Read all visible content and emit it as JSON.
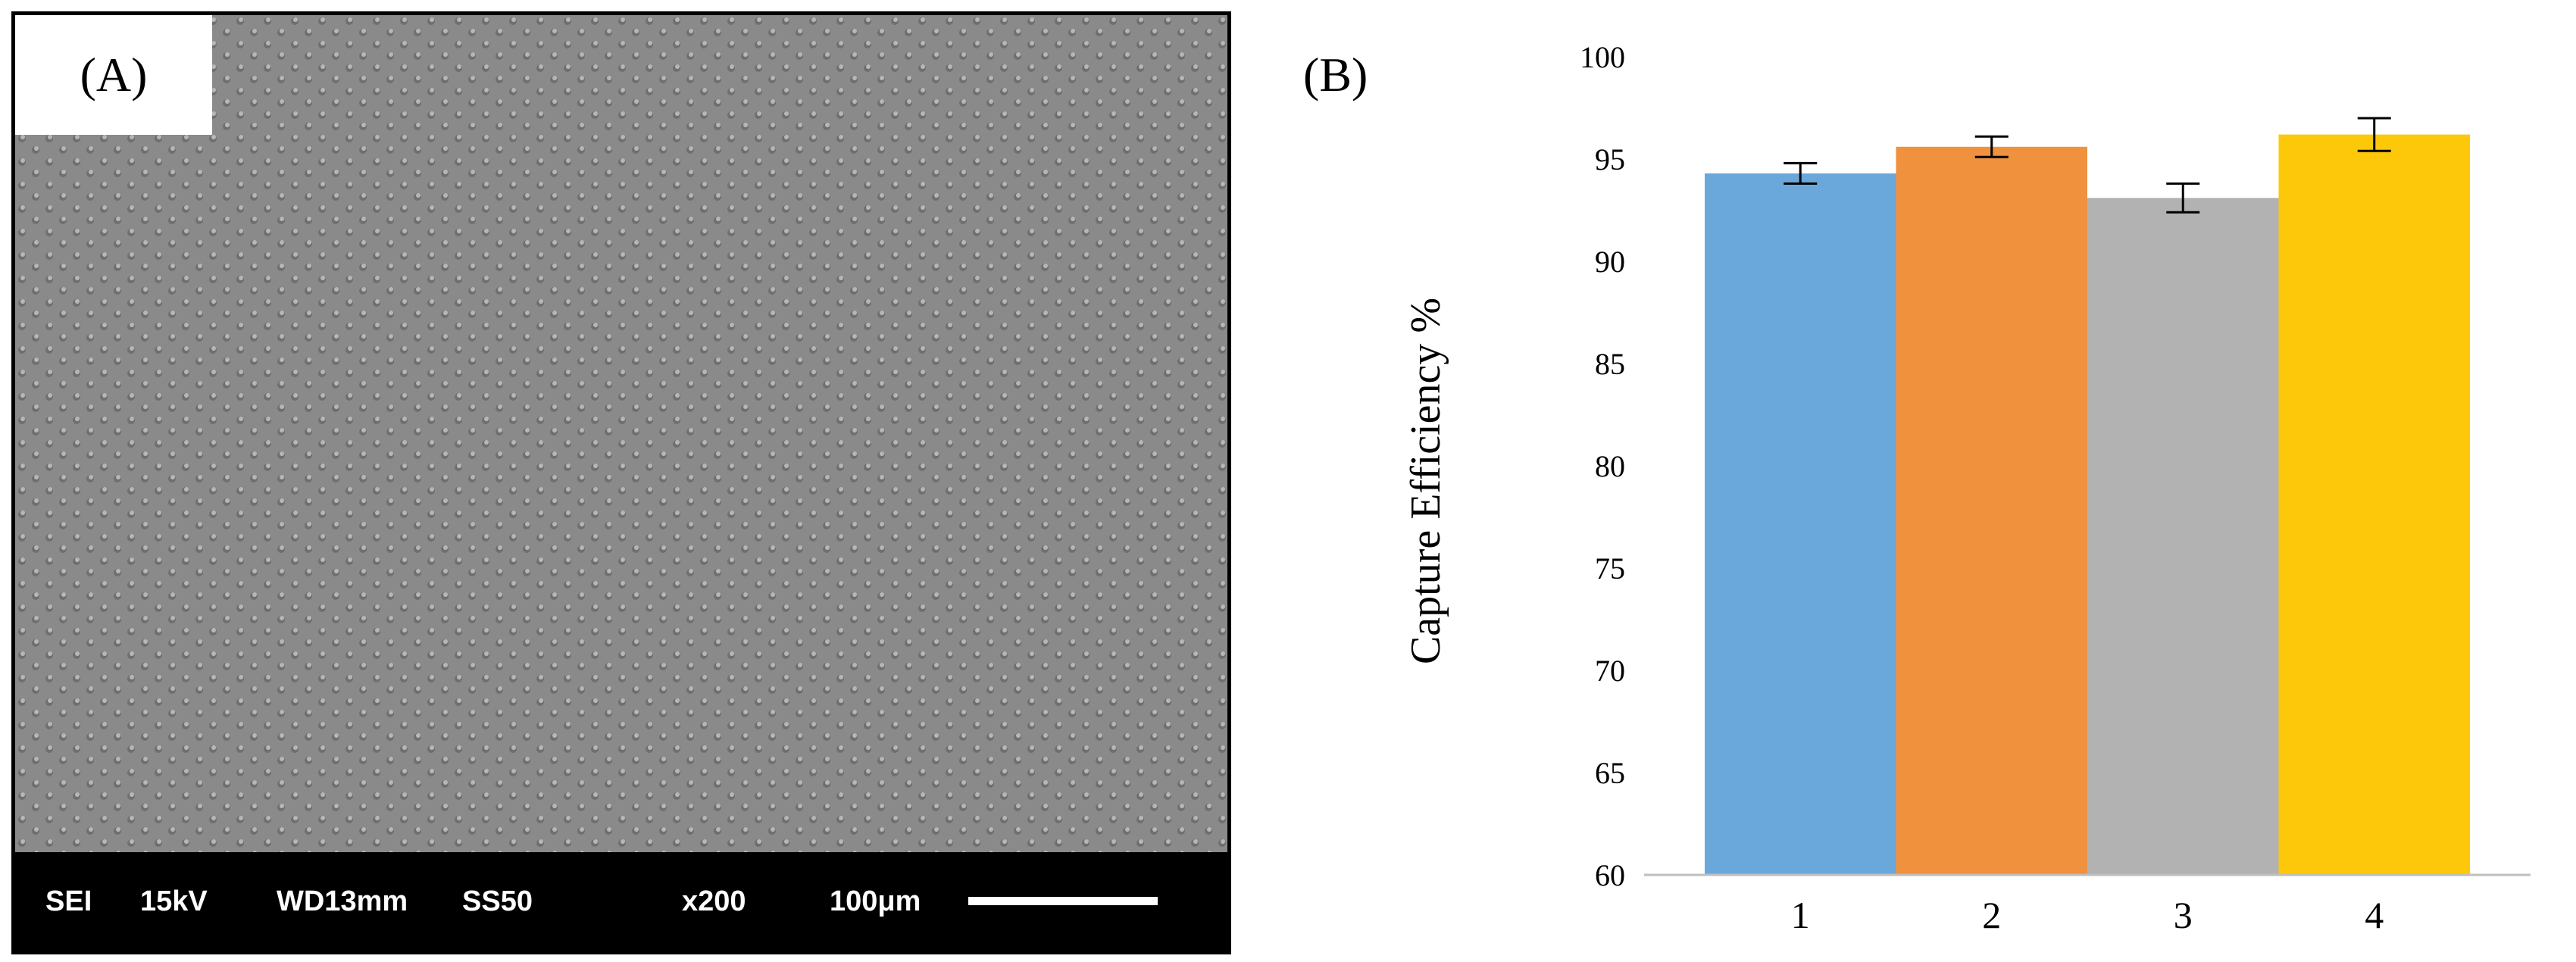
{
  "panel_a": {
    "label": "(A)",
    "info_bar": {
      "detector": "SEI",
      "voltage": "15kV",
      "working_distance": "WD13mm",
      "spot_size": "SS50",
      "magnification": "x200",
      "scale": "100μm"
    }
  },
  "panel_b": {
    "label": "(B)"
  },
  "colors": {
    "sem_background": "#8a8a8a",
    "bar_1": "#6aa8dc",
    "bar_2": "#f0913e",
    "bar_3": "#b2b2b2",
    "bar_4": "#fdc80a"
  },
  "chart_data": {
    "type": "bar",
    "title": "",
    "xlabel": "",
    "ylabel": "Capture Efficiency %",
    "categories": [
      "1",
      "2",
      "3",
      "4"
    ],
    "values": [
      94.3,
      95.6,
      93.1,
      96.2
    ],
    "errors": [
      0.5,
      0.5,
      0.7,
      0.8
    ],
    "ylim": [
      60,
      100
    ],
    "yticks": [
      60,
      65,
      70,
      75,
      80,
      85,
      90,
      95,
      100
    ],
    "grid": false,
    "legend": "none"
  }
}
